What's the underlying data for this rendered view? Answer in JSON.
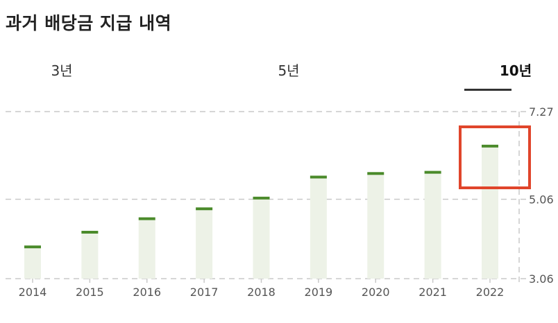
{
  "header": {
    "title": "과거 배당금 지급 내역"
  },
  "tabs": [
    {
      "label": "3년",
      "selected": false
    },
    {
      "label": "5년",
      "selected": false
    },
    {
      "label": "10년",
      "selected": true
    }
  ],
  "colors": {
    "bar_fill": "#edf2e7",
    "value_marker": "#4a8a2a",
    "highlight": "#e0452b",
    "grid": "#c8c8c8"
  },
  "chart_data": {
    "type": "bar",
    "categories": [
      "2014",
      "2015",
      "2016",
      "2017",
      "2018",
      "2019",
      "2020",
      "2021",
      "2022"
    ],
    "values": [
      3.86,
      4.23,
      4.57,
      4.82,
      5.09,
      5.62,
      5.71,
      5.74,
      6.4
    ],
    "ylim": [
      3.06,
      7.27
    ],
    "yticks": [
      "3.06",
      "5.06",
      "7.27"
    ],
    "ytick_values": [
      3.06,
      5.06,
      7.27
    ],
    "grid": true,
    "highlighted_category": "2022"
  }
}
